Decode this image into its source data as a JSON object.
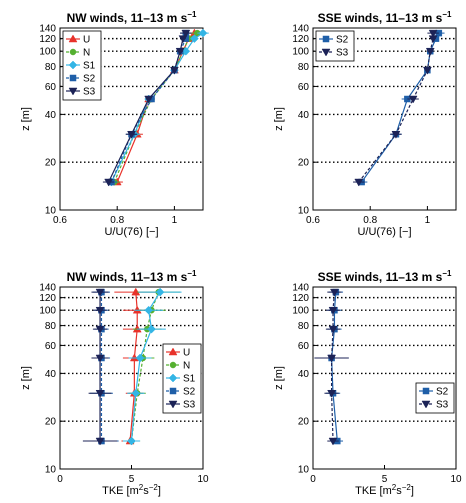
{
  "chart_data": [
    {
      "id": "p1",
      "type": "line",
      "title": "NW winds, 11–13 m s",
      "title_sup": "−1",
      "xlabel": "U/U(76) [−]",
      "ylabel": "z [m]",
      "yscale": "log",
      "xlim": [
        0.6,
        1.1
      ],
      "ylim": [
        10,
        140
      ],
      "xticks": [
        0.6,
        0.8,
        1
      ],
      "xtick_labels": [
        "0.6",
        "0.8",
        "1"
      ],
      "yticks": [
        10,
        20,
        40,
        60,
        80,
        100,
        120,
        140
      ],
      "ytick_labels": [
        "10",
        "20",
        "40",
        "60",
        "80",
        "100",
        "120",
        "140"
      ],
      "grid": "horizontal-dotted",
      "legend": "top-left",
      "series": [
        {
          "name": "U",
          "color": "#e8322a",
          "marker": "triangle-up",
          "y": [
            15,
            30,
            50,
            76,
            100,
            120,
            130
          ],
          "x": [
            0.8,
            0.87,
            0.91,
            1,
            1.03,
            1.05,
            1.07
          ],
          "err": [
            0.02,
            0.02,
            0.01,
            0,
            0.01,
            0.01,
            0.02
          ]
        },
        {
          "name": "N",
          "color": "#55b030",
          "marker": "circle",
          "y": [
            15,
            30,
            50,
            76,
            100,
            120,
            130
          ],
          "x": [
            0.79,
            0.86,
            0.92,
            1,
            1.03,
            1.05,
            1.08
          ],
          "err": [
            0.02,
            0.02,
            0.01,
            0,
            0.01,
            0.01,
            0.02
          ]
        },
        {
          "name": "S1",
          "color": "#33b5e5",
          "marker": "diamond",
          "y": [
            15,
            30,
            50,
            76,
            100,
            120,
            130
          ],
          "x": [
            0.78,
            0.86,
            0.91,
            1,
            1.04,
            1.07,
            1.1
          ],
          "err": [
            0.02,
            0.02,
            0.01,
            0,
            0.01,
            0.01,
            0.02
          ]
        },
        {
          "name": "S2",
          "color": "#1f5fa8",
          "marker": "square",
          "y": [
            15,
            30,
            50,
            76,
            100,
            120,
            130
          ],
          "x": [
            0.78,
            0.85,
            0.92,
            1,
            1.02,
            1.04,
            1.04
          ],
          "err": [
            0.02,
            0.02,
            0.01,
            0,
            0.01,
            0.01,
            0.02
          ]
        },
        {
          "name": "S3",
          "color": "#1c2357",
          "marker": "triangle-down",
          "y": [
            15,
            30,
            50,
            76,
            100,
            120,
            130
          ],
          "x": [
            0.77,
            0.85,
            0.91,
            1,
            1.02,
            1.03,
            1.04
          ],
          "err": [
            0.02,
            0.02,
            0.01,
            0,
            0.01,
            0.01,
            0.02
          ]
        }
      ]
    },
    {
      "id": "p2",
      "type": "line",
      "title": "SSE winds, 11–13 m s",
      "title_sup": "−1",
      "xlabel": "U/U(76) [−]",
      "ylabel": "z [m]",
      "yscale": "log",
      "xlim": [
        0.6,
        1.1
      ],
      "ylim": [
        10,
        140
      ],
      "xticks": [
        0.6,
        0.8,
        1
      ],
      "xtick_labels": [
        "0.6",
        "0.8",
        "1"
      ],
      "yticks": [
        10,
        20,
        40,
        60,
        80,
        100,
        120,
        140
      ],
      "ytick_labels": [
        "10",
        "20",
        "40",
        "60",
        "80",
        "100",
        "120",
        "140"
      ],
      "grid": "horizontal-dotted",
      "legend": "top-left",
      "series": [
        {
          "name": "S2",
          "color": "#1f5fa8",
          "marker": "square",
          "y": [
            15,
            30,
            50,
            76,
            100,
            120,
            130
          ],
          "x": [
            0.77,
            0.89,
            0.93,
            1,
            1.01,
            1.03,
            1.04
          ],
          "err": [
            0.02,
            0.02,
            0.02,
            0,
            0.01,
            0.01,
            0.02
          ]
        },
        {
          "name": "S3",
          "color": "#1c2357",
          "marker": "triangle-down",
          "y": [
            15,
            30,
            50,
            76,
            100,
            120,
            130
          ],
          "x": [
            0.76,
            0.89,
            0.95,
            1,
            1.01,
            1.02,
            1.02
          ],
          "err": [
            0.02,
            0.02,
            0.02,
            0,
            0.01,
            0.01,
            0.02
          ]
        }
      ]
    },
    {
      "id": "p3",
      "type": "line",
      "title": "NW winds, 11–13 m s",
      "title_sup": "−1",
      "xlabel": "TKE [m",
      "xlabel_sup1": "2",
      "xlabel_mid": "s",
      "xlabel_sup2": "−2",
      "xlabel_end": "]",
      "ylabel": "z [m]",
      "yscale": "log",
      "xlim": [
        0,
        10
      ],
      "ylim": [
        10,
        140
      ],
      "xticks": [
        0,
        5,
        10
      ],
      "xtick_labels": [
        "0",
        "5",
        "10"
      ],
      "yticks": [
        10,
        20,
        40,
        60,
        80,
        100,
        120,
        140
      ],
      "ytick_labels": [
        "10",
        "20",
        "40",
        "60",
        "80",
        "100",
        "120",
        "140"
      ],
      "grid": "horizontal-dotted",
      "legend": "bottom-right",
      "series": [
        {
          "name": "U",
          "color": "#e8322a",
          "marker": "triangle-up",
          "y": [
            15,
            30,
            50,
            76,
            100,
            130
          ],
          "x": [
            4.9,
            5.2,
            5.2,
            5.4,
            5.4,
            5.3
          ],
          "err": [
            0.6,
            0.6,
            0.8,
            1,
            1,
            1.5
          ]
        },
        {
          "name": "N",
          "color": "#55b030",
          "marker": "circle",
          "y": [
            15,
            30,
            50,
            76,
            100,
            130
          ],
          "x": [
            5,
            5.4,
            5.8,
            6.1,
            6.4,
            6.9
          ],
          "err": [
            0.6,
            0.6,
            0.8,
            1,
            1,
            1.5
          ]
        },
        {
          "name": "S1",
          "color": "#33b5e5",
          "marker": "diamond",
          "y": [
            15,
            30,
            50,
            76,
            100,
            130
          ],
          "x": [
            5,
            5.3,
            5.6,
            6.4,
            6.2,
            7
          ],
          "err": [
            0.6,
            0.6,
            0.8,
            1,
            1,
            1.5
          ]
        },
        {
          "name": "S2",
          "color": "#1f5fa8",
          "marker": "square",
          "y": [
            15,
            30,
            50,
            76,
            100,
            130
          ],
          "x": [
            2.9,
            2.9,
            2.9,
            2.9,
            2.9,
            2.9
          ],
          "err": [
            1.2,
            0.8,
            0.6,
            0.5,
            0.5,
            0.6
          ]
        },
        {
          "name": "S3",
          "color": "#1c2357",
          "marker": "triangle-down",
          "y": [
            15,
            30,
            50,
            76,
            100,
            130
          ],
          "x": [
            2.8,
            2.8,
            2.8,
            2.8,
            2.8,
            2.8
          ],
          "err": [
            1.2,
            0.8,
            0.6,
            0.5,
            0.5,
            0.6
          ]
        }
      ]
    },
    {
      "id": "p4",
      "type": "line",
      "title": "SSE winds, 11–13 m s",
      "title_sup": "−1",
      "xlabel": "TKE [m",
      "xlabel_sup1": "2",
      "xlabel_mid": "s",
      "xlabel_sup2": "−2",
      "xlabel_end": "]",
      "ylabel": "z [m]",
      "yscale": "log",
      "xlim": [
        0,
        10
      ],
      "ylim": [
        10,
        140
      ],
      "xticks": [
        0,
        5,
        10
      ],
      "xtick_labels": [
        "0",
        "5",
        "10"
      ],
      "yticks": [
        10,
        20,
        40,
        60,
        80,
        100,
        120,
        140
      ],
      "ytick_labels": [
        "10",
        "20",
        "40",
        "60",
        "80",
        "100",
        "120",
        "140"
      ],
      "grid": "horizontal-dotted",
      "legend": "bottom-right",
      "series": [
        {
          "name": "S2",
          "color": "#1f5fa8",
          "marker": "square",
          "y": [
            15,
            30,
            50,
            76,
            100,
            130
          ],
          "x": [
            1.7,
            1.4,
            1.3,
            1.5,
            1.5,
            1.6
          ],
          "err": [
            0.4,
            0.5,
            1.2,
            0.5,
            0.5,
            0.5
          ]
        },
        {
          "name": "S3",
          "color": "#1c2357",
          "marker": "triangle-down",
          "y": [
            15,
            30,
            50,
            76,
            100,
            130
          ],
          "x": [
            1.4,
            1.3,
            1.3,
            1.4,
            1.4,
            1.5
          ],
          "err": [
            0.4,
            0.5,
            1.2,
            0.5,
            0.5,
            0.5
          ]
        }
      ]
    }
  ]
}
